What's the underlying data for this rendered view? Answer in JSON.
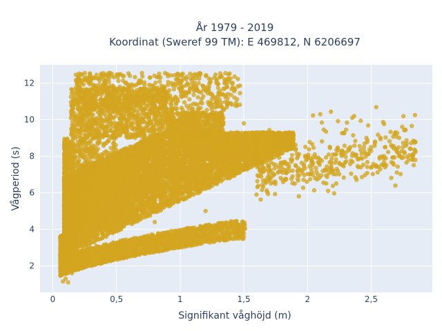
{
  "chart_data": {
    "type": "scatter",
    "title": "År 1979 - 2019",
    "subtitle": "Koordinat (Sweref 99 TM): E 469812, N 6206697",
    "xlabel": "Signifikant våghöjd (m)",
    "ylabel": "Vågperiod (s)",
    "xlim": [
      -0.1,
      2.98
    ],
    "ylim": [
      0.55,
      13.0
    ],
    "x_ticks": [
      0,
      0.5,
      1,
      1.5,
      2,
      2.5
    ],
    "x_tick_labels": [
      "0",
      "0,5",
      "1",
      "1,5",
      "2",
      "2,5"
    ],
    "y_ticks": [
      2,
      4,
      6,
      8,
      10,
      12
    ],
    "y_tick_labels": [
      "2",
      "4",
      "6",
      "8",
      "10",
      "12"
    ],
    "grid": true,
    "legend": "none",
    "marker_color": "#D4A520",
    "plot_background": "#E5ECF6",
    "point_count": 14000,
    "sample_points": [
      [
        0.08,
        1.15
      ],
      [
        0.1,
        1.3
      ],
      [
        0.12,
        1.1
      ],
      [
        0.15,
        1.6
      ],
      [
        0.2,
        1.8
      ],
      [
        0.3,
        2.1
      ],
      [
        0.5,
        2.5
      ],
      [
        0.7,
        2.7
      ],
      [
        0.9,
        3.0
      ],
      [
        1.0,
        3.2
      ],
      [
        1.1,
        3.3
      ],
      [
        1.35,
        3.4
      ],
      [
        1.45,
        3.55
      ],
      [
        0.1,
        6.5
      ],
      [
        0.12,
        8.0
      ],
      [
        0.2,
        10.0
      ],
      [
        0.2,
        11.5
      ],
      [
        0.25,
        12.3
      ],
      [
        0.3,
        12.2
      ],
      [
        0.45,
        12.55
      ],
      [
        0.7,
        12.55
      ],
      [
        1.1,
        12.4
      ],
      [
        0.9,
        11.5
      ],
      [
        1.4,
        11.35
      ],
      [
        0.6,
        10.5
      ],
      [
        1.0,
        10.3
      ],
      [
        1.3,
        10.0
      ],
      [
        2.1,
        10.3
      ],
      [
        1.5,
        9.8
      ],
      [
        0.5,
        4.0
      ],
      [
        0.8,
        4.4
      ],
      [
        1.2,
        5.0
      ],
      [
        1.6,
        5.9
      ],
      [
        1.9,
        6.5
      ],
      [
        2.0,
        8.0
      ],
      [
        2.3,
        8.2
      ],
      [
        2.5,
        8.5
      ],
      [
        2.6,
        8.0
      ],
      [
        2.75,
        8.5
      ],
      [
        2.84,
        8.8
      ],
      [
        2.8,
        8.05
      ],
      [
        2.7,
        8.3
      ],
      [
        1.6,
        9.3
      ],
      [
        1.7,
        8.7
      ],
      [
        2.4,
        7.4
      ],
      [
        0.4,
        7.0
      ],
      [
        0.6,
        6.5
      ],
      [
        0.8,
        6.8
      ],
      [
        1.0,
        7.0
      ],
      [
        1.2,
        7.3
      ],
      [
        1.4,
        7.6
      ]
    ]
  }
}
